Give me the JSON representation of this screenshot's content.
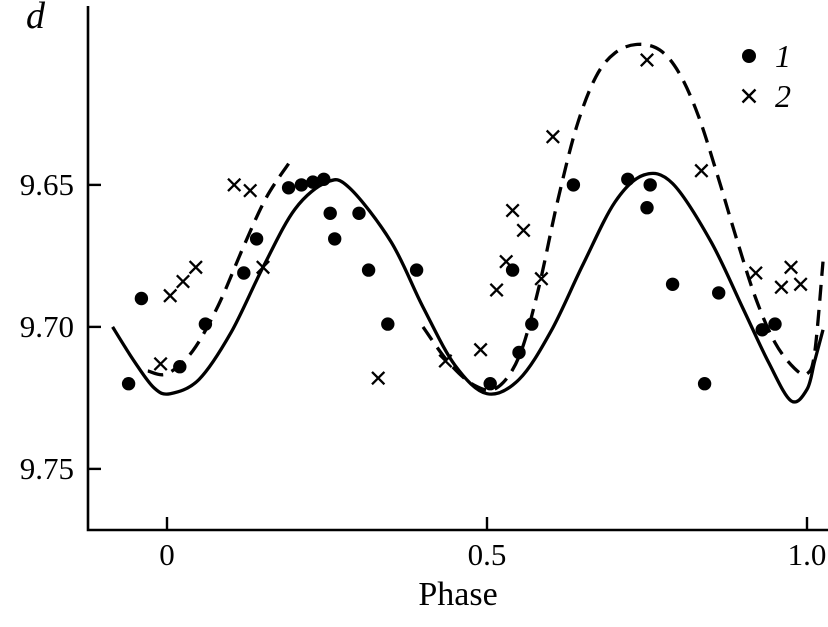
{
  "figure": {
    "y_axis_symbol": "d",
    "x_axis_title": "Phase",
    "background_color": "#ffffff",
    "ink_color": "#000000"
  },
  "legend": {
    "items": [
      {
        "label": "1",
        "marker": "filled-circle"
      },
      {
        "label": "2",
        "marker": "cross"
      }
    ]
  },
  "chart_data": {
    "type": "scatter",
    "title": "",
    "xlabel": "Phase",
    "ylabel": "d",
    "grid": false,
    "legend_position": "top-right",
    "xlim": [
      -0.1234,
      1.0328
    ],
    "ylim": [
      9.5877,
      9.7715
    ],
    "y_inverted_magnitude_axis": true,
    "x_axis": {
      "ticks": [
        0,
        0.5,
        1.0
      ],
      "tick_labels": [
        "0",
        "0.5",
        "1.0"
      ]
    },
    "y_axis": {
      "ticks": [
        9.65,
        9.7,
        9.75
      ],
      "tick_labels": [
        "9.65",
        "9.70",
        "9.75"
      ]
    },
    "series": [
      {
        "name": "1",
        "marker": "filled-circle",
        "points": [
          [
            -0.06,
            9.72
          ],
          [
            -0.04,
            9.69
          ],
          [
            0.02,
            9.714
          ],
          [
            0.06,
            9.699
          ],
          [
            0.12,
            9.681
          ],
          [
            0.14,
            9.669
          ],
          [
            0.19,
            9.651
          ],
          [
            0.21,
            9.65
          ],
          [
            0.228,
            9.649
          ],
          [
            0.245,
            9.648
          ],
          [
            0.255,
            9.66
          ],
          [
            0.262,
            9.669
          ],
          [
            0.3,
            9.66
          ],
          [
            0.315,
            9.68
          ],
          [
            0.345,
            9.699
          ],
          [
            0.39,
            9.68
          ],
          [
            0.505,
            9.72
          ],
          [
            0.54,
            9.68
          ],
          [
            0.55,
            9.709
          ],
          [
            0.57,
            9.699
          ],
          [
            0.635,
            9.65
          ],
          [
            0.72,
            9.648
          ],
          [
            0.75,
            9.658
          ],
          [
            0.755,
            9.65
          ],
          [
            0.79,
            9.685
          ],
          [
            0.84,
            9.72
          ],
          [
            0.862,
            9.688
          ],
          [
            0.93,
            9.701
          ],
          [
            0.95,
            9.699
          ]
        ]
      },
      {
        "name": "2",
        "marker": "cross",
        "points": [
          [
            -0.01,
            9.713
          ],
          [
            0.005,
            9.689
          ],
          [
            0.025,
            9.684
          ],
          [
            0.045,
            9.679
          ],
          [
            0.105,
            9.65
          ],
          [
            0.13,
            9.652
          ],
          [
            0.15,
            9.679
          ],
          [
            0.33,
            9.718
          ],
          [
            0.435,
            9.712
          ],
          [
            0.49,
            9.708
          ],
          [
            0.515,
            9.687
          ],
          [
            0.53,
            9.677
          ],
          [
            0.54,
            9.659
          ],
          [
            0.557,
            9.666
          ],
          [
            0.585,
            9.683
          ],
          [
            0.603,
            9.633
          ],
          [
            0.75,
            9.606
          ],
          [
            0.835,
            9.645
          ],
          [
            0.92,
            9.681
          ],
          [
            0.96,
            9.686
          ],
          [
            0.975,
            9.679
          ],
          [
            0.99,
            9.685
          ]
        ]
      }
    ],
    "curves": [
      {
        "name": "fit-solid",
        "style": "solid",
        "points": [
          [
            -0.085,
            9.7
          ],
          [
            -0.05,
            9.7125
          ],
          [
            -0.02,
            9.7215
          ],
          [
            0.005,
            9.7235
          ],
          [
            0.05,
            9.7185
          ],
          [
            0.1,
            9.702
          ],
          [
            0.15,
            9.679
          ],
          [
            0.2,
            9.6585
          ],
          [
            0.25,
            9.649
          ],
          [
            0.285,
            9.651
          ],
          [
            0.35,
            9.67
          ],
          [
            0.4,
            9.693
          ],
          [
            0.45,
            9.7135
          ],
          [
            0.5,
            9.7235
          ],
          [
            0.55,
            9.7185
          ],
          [
            0.6,
            9.7015
          ],
          [
            0.65,
            9.678
          ],
          [
            0.7,
            9.656
          ],
          [
            0.745,
            9.6465
          ],
          [
            0.79,
            9.6495
          ],
          [
            0.85,
            9.67
          ],
          [
            0.9,
            9.6935
          ],
          [
            0.94,
            9.7125
          ],
          [
            0.975,
            9.726
          ],
          [
            1.0,
            9.722
          ],
          [
            1.012,
            9.712
          ],
          [
            1.025,
            9.701
          ]
        ]
      },
      {
        "name": "fit-dashed-segment-a",
        "style": "dashed",
        "points": [
          [
            -0.03,
            9.7155
          ],
          [
            0.0,
            9.7165
          ],
          [
            0.04,
            9.7085
          ],
          [
            0.08,
            9.6925
          ],
          [
            0.12,
            9.6715
          ],
          [
            0.155,
            9.6545
          ],
          [
            0.19,
            9.6425
          ]
        ]
      },
      {
        "name": "fit-dashed-segment-b",
        "style": "dashed",
        "points": [
          [
            0.4,
            9.7
          ],
          [
            0.44,
            9.7125
          ],
          [
            0.48,
            9.7205
          ],
          [
            0.515,
            9.7215
          ],
          [
            0.55,
            9.7105
          ],
          [
            0.58,
            9.687
          ],
          [
            0.61,
            9.656
          ],
          [
            0.64,
            9.6295
          ],
          [
            0.67,
            9.612
          ],
          [
            0.7,
            9.6035
          ],
          [
            0.735,
            9.6005
          ],
          [
            0.77,
            9.6025
          ],
          [
            0.8,
            9.6105
          ],
          [
            0.83,
            9.6255
          ],
          [
            0.86,
            9.6465
          ],
          [
            0.89,
            9.669
          ],
          [
            0.92,
            9.69
          ],
          [
            0.95,
            9.7055
          ],
          [
            0.98,
            9.7145
          ],
          [
            1.0,
            9.7165
          ],
          [
            1.012,
            9.709
          ],
          [
            1.025,
            9.677
          ]
        ]
      }
    ]
  }
}
